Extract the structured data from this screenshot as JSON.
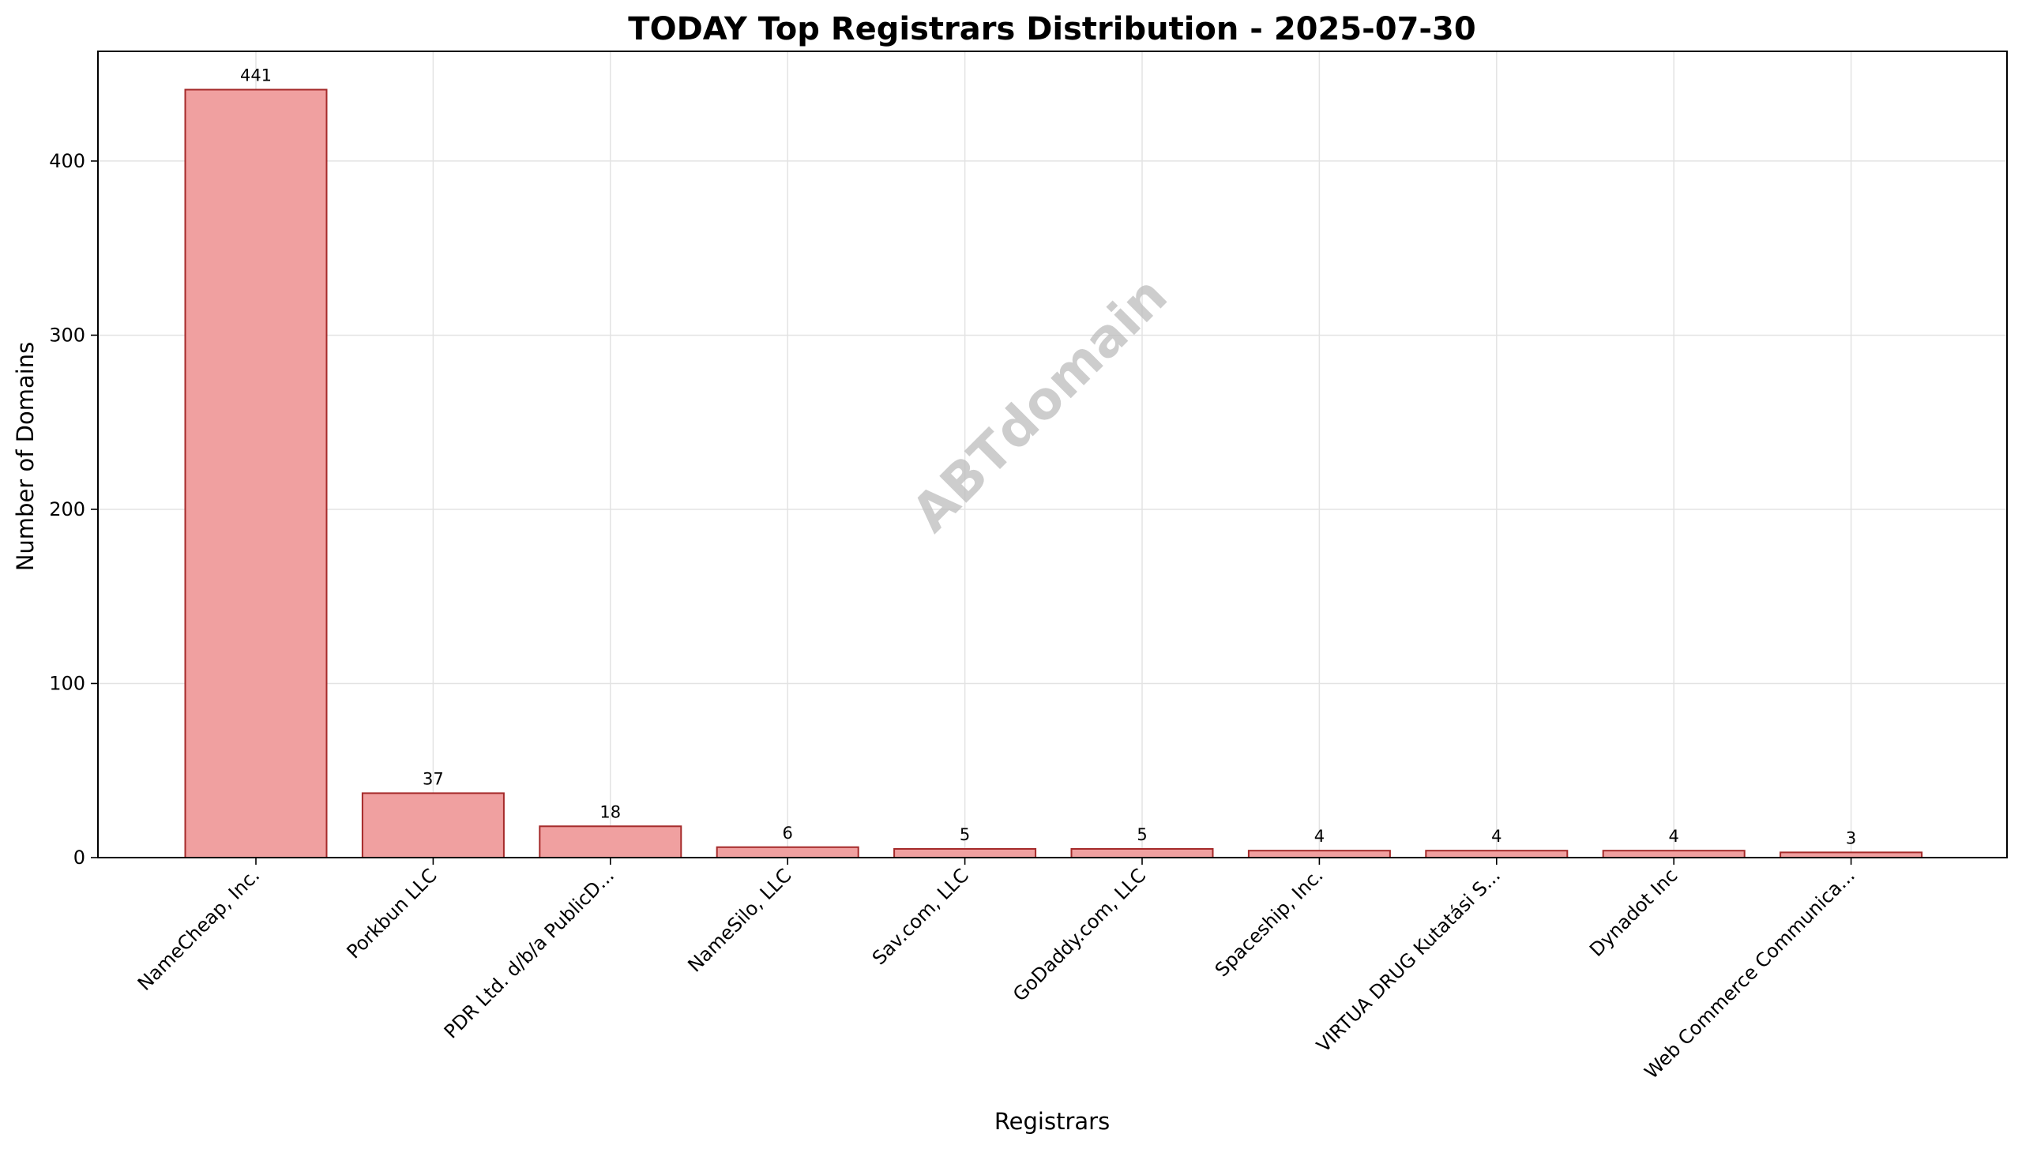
{
  "chart_data": {
    "type": "bar",
    "title": "TODAY Top Registrars Distribution - 2025-07-30",
    "xlabel": "Registrars",
    "ylabel": "Number of Domains",
    "categories": [
      "NameCheap, Inc.",
      "Porkbun LLC",
      "PDR Ltd. d/b/a PublicD...",
      "NameSilo, LLC",
      "Sav.com, LLC",
      "GoDaddy.com, LLC",
      "Spaceship, Inc.",
      "VIRTUA DRUG Kutatási S...",
      "Dynadot Inc",
      "Web Commerce Communica..."
    ],
    "values": [
      441,
      37,
      18,
      6,
      5,
      5,
      4,
      4,
      4,
      3
    ],
    "ylim": [
      0,
      463
    ],
    "yticks": [
      0,
      100,
      200,
      300,
      400
    ],
    "grid": true,
    "watermark": "ABTdomain",
    "colors": {
      "bar_fill": "#f0a0a0",
      "bar_edge": "#a52a2a",
      "grid": "#e3e3e3"
    }
  }
}
